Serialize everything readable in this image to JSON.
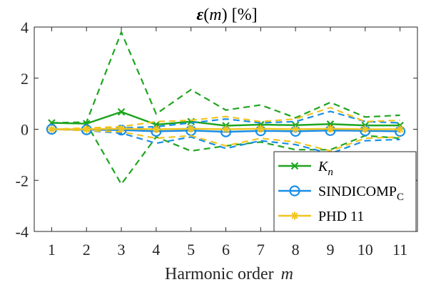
{
  "chart_data": {
    "type": "line",
    "title_symbol": "ε",
    "title_open": "(",
    "title_var": "m",
    "title_close": ")",
    "title_unit": "[%]",
    "xlabel_text": "Harmonic order",
    "xlabel_var": "m",
    "xlim": [
      0.5,
      11.5
    ],
    "ylim": [
      -4,
      4
    ],
    "x": [
      1,
      2,
      3,
      4,
      5,
      6,
      7,
      8,
      9,
      10,
      11
    ],
    "x_tick_labels": [
      "1",
      "2",
      "3",
      "4",
      "5",
      "6",
      "7",
      "8",
      "9",
      "10",
      "11"
    ],
    "y_ticks": [
      -4,
      -2,
      0,
      2,
      4
    ],
    "y_tick_labels": [
      "-4",
      "-2",
      "0",
      "2",
      "4"
    ],
    "grid": false,
    "legend_position": "bottom-right",
    "series": [
      {
        "name": "K",
        "name_subscript": "n",
        "color": "#1fa51f",
        "marker": "x",
        "values": [
          0.25,
          0.22,
          0.68,
          0.18,
          0.3,
          0.14,
          0.18,
          0.16,
          0.2,
          0.15,
          0.15
        ],
        "upper": [
          0.25,
          0.28,
          3.8,
          0.6,
          1.55,
          0.75,
          0.95,
          0.45,
          1.05,
          0.48,
          0.55
        ],
        "lower": [
          0.25,
          0.22,
          -2.15,
          -0.3,
          -0.85,
          -0.65,
          -0.5,
          -0.8,
          -0.8,
          -0.25,
          -0.35
        ]
      },
      {
        "name": "SINDICOMP",
        "name_subscript": "C",
        "color": "#1a8ee6",
        "marker": "o",
        "values": [
          0.0,
          -0.02,
          -0.03,
          -0.08,
          -0.05,
          -0.1,
          -0.06,
          -0.08,
          -0.05,
          -0.06,
          -0.08
        ],
        "upper": [
          0.0,
          0.02,
          0.05,
          0.1,
          0.25,
          0.4,
          0.25,
          0.3,
          0.7,
          0.3,
          0.25
        ],
        "lower": [
          0.0,
          -0.05,
          -0.15,
          -0.55,
          -0.3,
          -0.75,
          -0.45,
          -0.6,
          -0.95,
          -0.45,
          -0.4
        ]
      },
      {
        "name": "PHD 11",
        "color": "#f2c41e",
        "marker": "*",
        "values": [
          0.0,
          0.0,
          0.02,
          0.0,
          0.02,
          0.0,
          0.02,
          0.0,
          0.02,
          0.0,
          0.0
        ],
        "upper": [
          0.0,
          0.05,
          0.1,
          0.3,
          0.35,
          0.5,
          0.3,
          0.4,
          0.85,
          0.3,
          0.35
        ],
        "lower": [
          0.0,
          -0.05,
          -0.1,
          -0.35,
          -0.25,
          -0.65,
          -0.35,
          -0.5,
          -0.85,
          -0.35,
          -0.3
        ]
      }
    ]
  }
}
